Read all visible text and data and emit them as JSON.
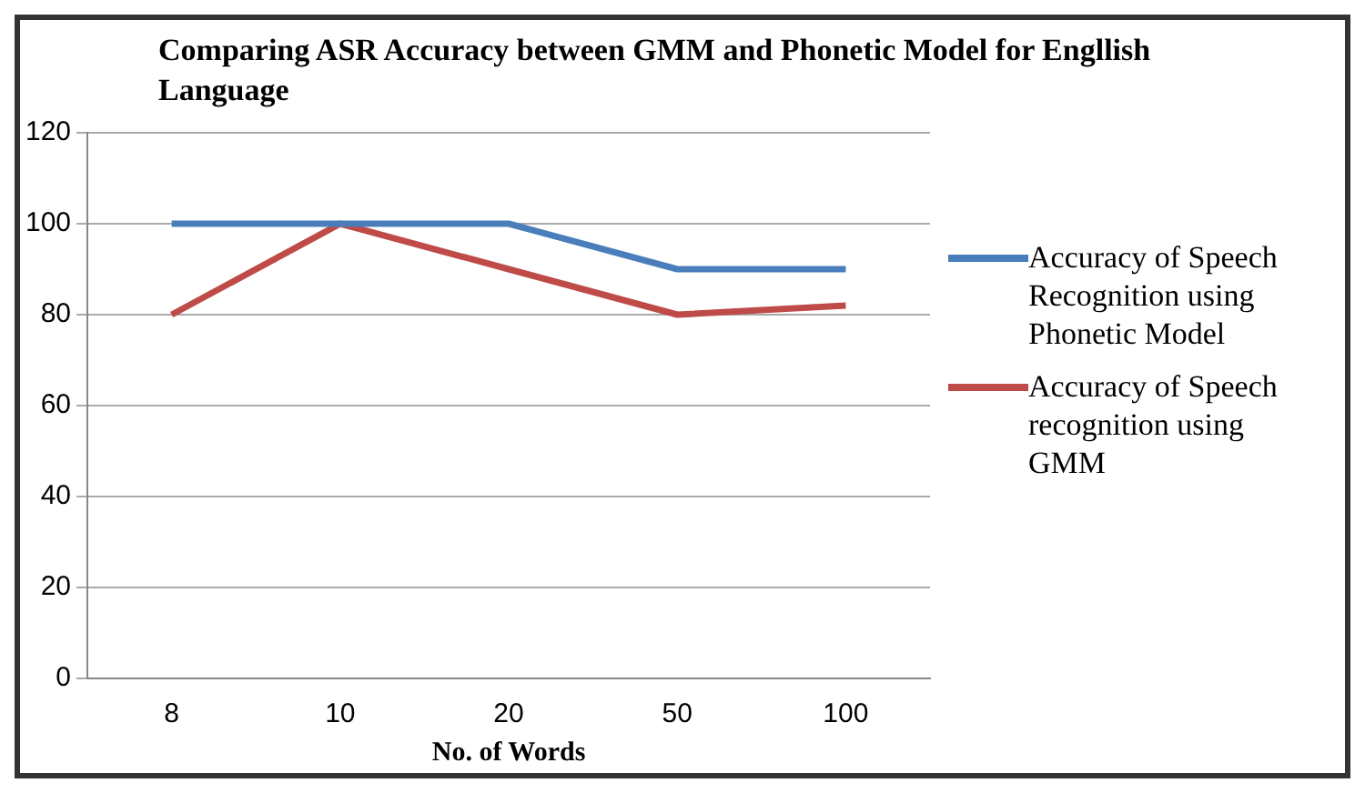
{
  "chart_data": {
    "type": "line",
    "title": "Comparing ASR Accuracy between GMM and Phonetic Model for Engllish Language",
    "xlabel": "No. of Words",
    "categories": [
      "8",
      "10",
      "20",
      "50",
      "100"
    ],
    "series": [
      {
        "name": "Accuracy of Speech Recognition using Phonetic Model",
        "color": "#4a7ebb",
        "values": [
          100,
          100,
          100,
          90,
          90
        ]
      },
      {
        "name": "Accuracy of Speech recognition using GMM",
        "color": "#be4b48",
        "values": [
          80,
          100,
          90,
          80,
          82
        ]
      }
    ],
    "ylim": [
      0,
      120
    ],
    "yticks": [
      0,
      20,
      40,
      60,
      80,
      100,
      120
    ],
    "grid": "y",
    "legend": "right",
    "marker": "none",
    "line_style": "solid"
  }
}
